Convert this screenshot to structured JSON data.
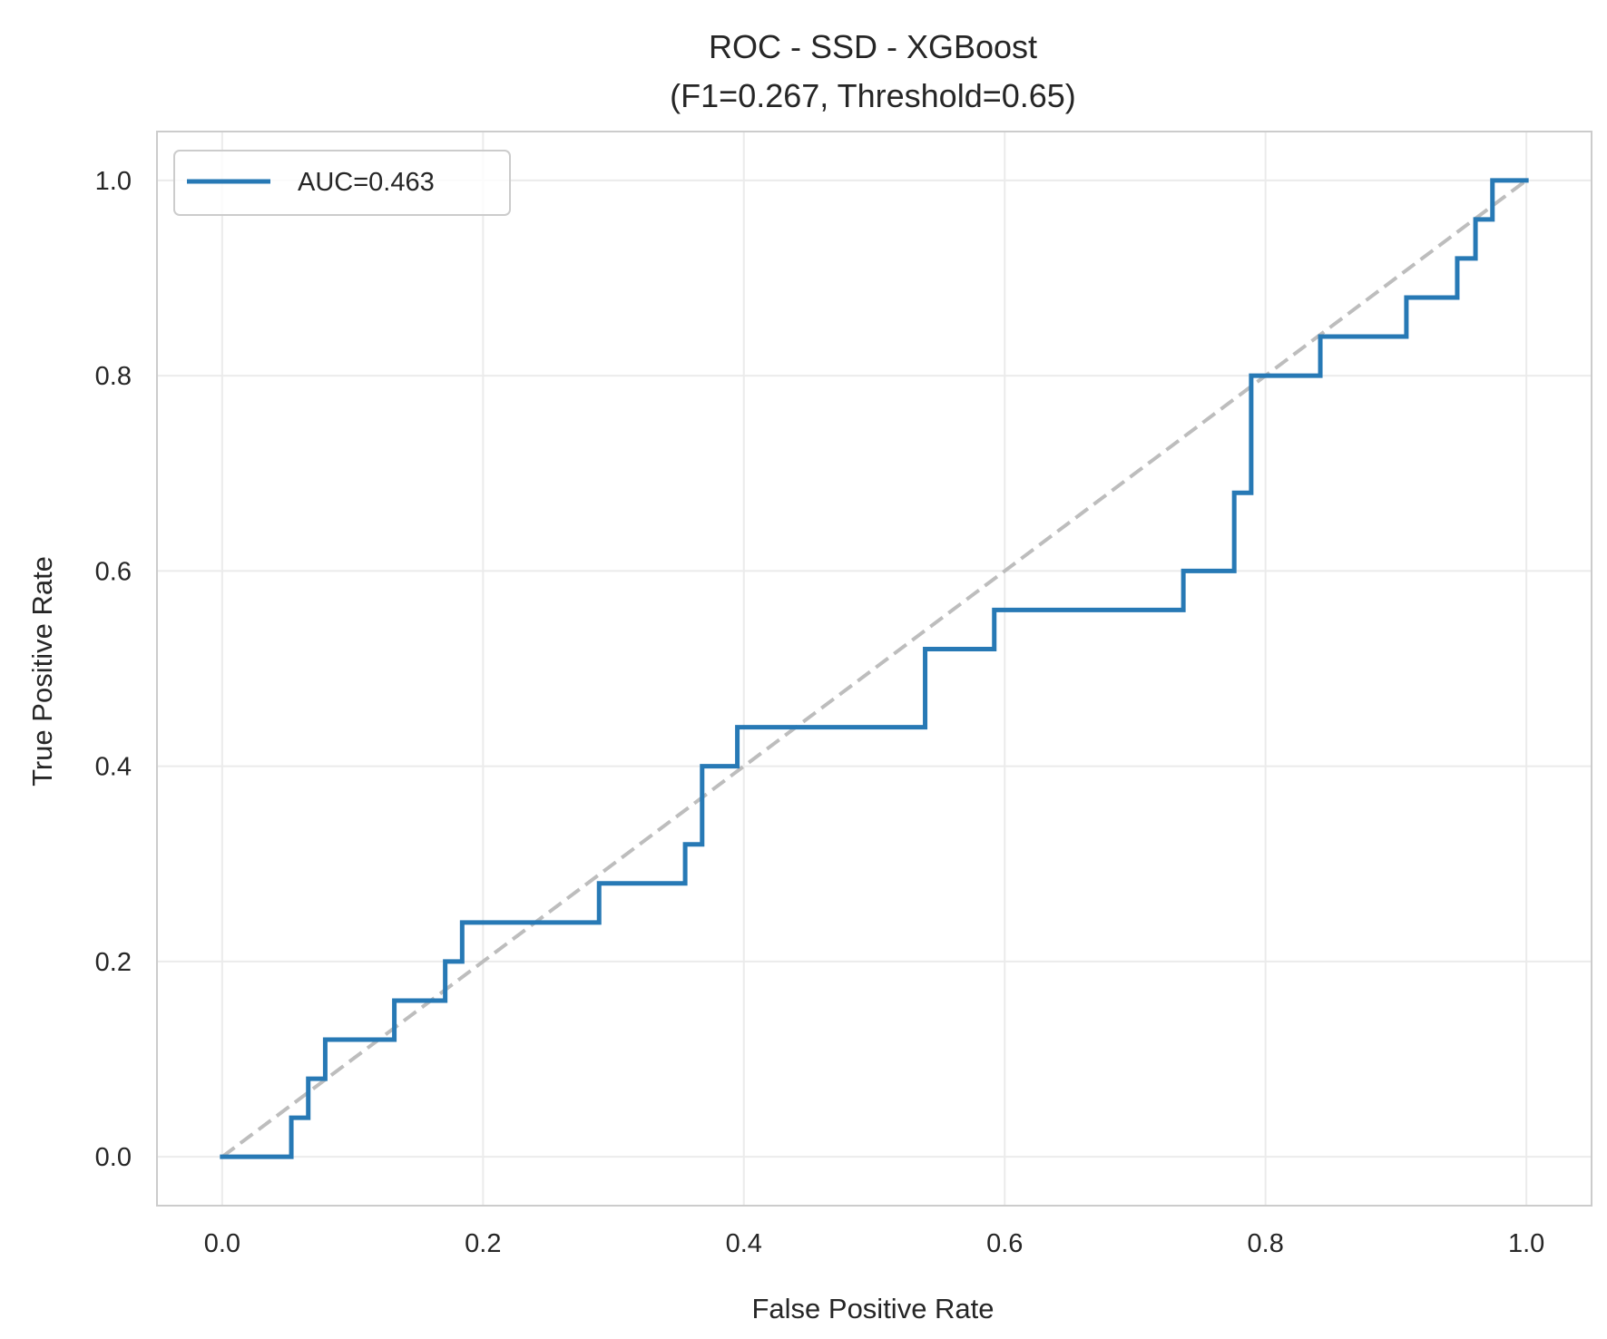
{
  "chart_data": {
    "type": "line",
    "title": "ROC - SSD - XGBoost",
    "subtitle": "(F1=0.267, Threshold=0.65)",
    "xlabel": "False Positive Rate",
    "ylabel": "True Positive Rate",
    "xlim": [
      -0.05,
      1.05
    ],
    "ylim": [
      -0.05,
      1.05
    ],
    "xticks": [
      "0.0",
      "0.2",
      "0.4",
      "0.6",
      "0.8",
      "1.0"
    ],
    "yticks": [
      "0.0",
      "0.2",
      "0.4",
      "0.6",
      "0.8",
      "1.0"
    ],
    "grid": true,
    "legend": {
      "location": "upper left"
    },
    "colors": {
      "roc": "#2779b5",
      "diagonal": "#bdbdbd",
      "grid": "#ebebeb",
      "frame": "#cccccc"
    },
    "series": [
      {
        "name": "AUC=0.463",
        "style": "solid",
        "x": [
          0.0,
          0.053,
          0.053,
          0.066,
          0.066,
          0.079,
          0.079,
          0.132,
          0.132,
          0.171,
          0.171,
          0.184,
          0.184,
          0.289,
          0.289,
          0.355,
          0.355,
          0.368,
          0.368,
          0.395,
          0.395,
          0.539,
          0.539,
          0.592,
          0.592,
          0.737,
          0.737,
          0.776,
          0.776,
          0.789,
          0.789,
          0.842,
          0.842,
          0.908,
          0.908,
          0.947,
          0.947,
          0.961,
          0.961,
          0.974,
          0.974,
          1.0
        ],
        "y": [
          0.0,
          0.0,
          0.04,
          0.04,
          0.08,
          0.08,
          0.12,
          0.12,
          0.16,
          0.16,
          0.2,
          0.2,
          0.24,
          0.24,
          0.28,
          0.28,
          0.32,
          0.32,
          0.4,
          0.4,
          0.44,
          0.44,
          0.52,
          0.52,
          0.56,
          0.56,
          0.6,
          0.6,
          0.68,
          0.68,
          0.8,
          0.8,
          0.84,
          0.84,
          0.88,
          0.88,
          0.92,
          0.92,
          0.96,
          0.96,
          1.0,
          1.0
        ]
      },
      {
        "style": "dashed",
        "x": [
          0.0,
          1.0
        ],
        "y": [
          0.0,
          1.0
        ]
      }
    ]
  }
}
